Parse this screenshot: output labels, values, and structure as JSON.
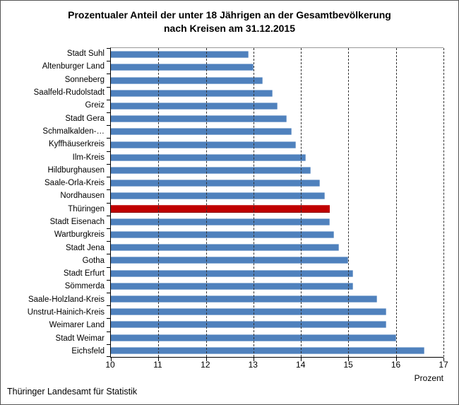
{
  "title": {
    "line1": "Prozentualer Anteil der unter 18 Jährigen an der Gesamtbevölkerung",
    "line2": "nach Kreisen am 31.12.2015"
  },
  "axis": {
    "xlabel": "Prozent"
  },
  "footer": {
    "source": "Thüringer Landesamt für Statistik"
  },
  "colors": {
    "bar": "#4f81bd",
    "highlight": "#c00000",
    "gridline": "#333333",
    "axis": "#000000",
    "plot_border_top": "#999999"
  },
  "chart_data": {
    "type": "bar",
    "orientation": "horizontal",
    "title": "Prozentualer Anteil der unter 18 Jährigen an der Gesamtbevölkerung nach Kreisen am 31.12.2015",
    "xlabel": "Prozent",
    "xlim": [
      10,
      17
    ],
    "xticks": [
      10,
      11,
      12,
      13,
      14,
      15,
      16,
      17
    ],
    "grid": "vertical-dashed",
    "legend": "none",
    "categories": [
      "Stadt Suhl",
      "Altenburger Land",
      "Sonneberg",
      "Saalfeld-Rudolstadt",
      "Greiz",
      "Stadt Gera",
      "Schmalkalden-…",
      "Kyffhäuserkreis",
      "Ilm-Kreis",
      "Hildburghausen",
      "Saale-Orla-Kreis",
      "Nordhausen",
      "Thüringen",
      "Stadt Eisenach",
      "Wartburgkreis",
      "Stadt Jena",
      "Gotha",
      "Stadt Erfurt",
      "Sömmerda",
      "Saale-Holzland-Kreis",
      "Unstrut-Hainich-Kreis",
      "Weimarer Land",
      "Stadt Weimar",
      "Eichsfeld"
    ],
    "values": [
      12.9,
      13.0,
      13.2,
      13.4,
      13.5,
      13.7,
      13.8,
      13.9,
      14.1,
      14.2,
      14.4,
      14.5,
      14.6,
      14.6,
      14.7,
      14.8,
      15.0,
      15.1,
      15.1,
      15.6,
      15.8,
      15.8,
      16.0,
      16.6
    ],
    "highlight_category": "Thüringen",
    "unit": "Prozent"
  }
}
